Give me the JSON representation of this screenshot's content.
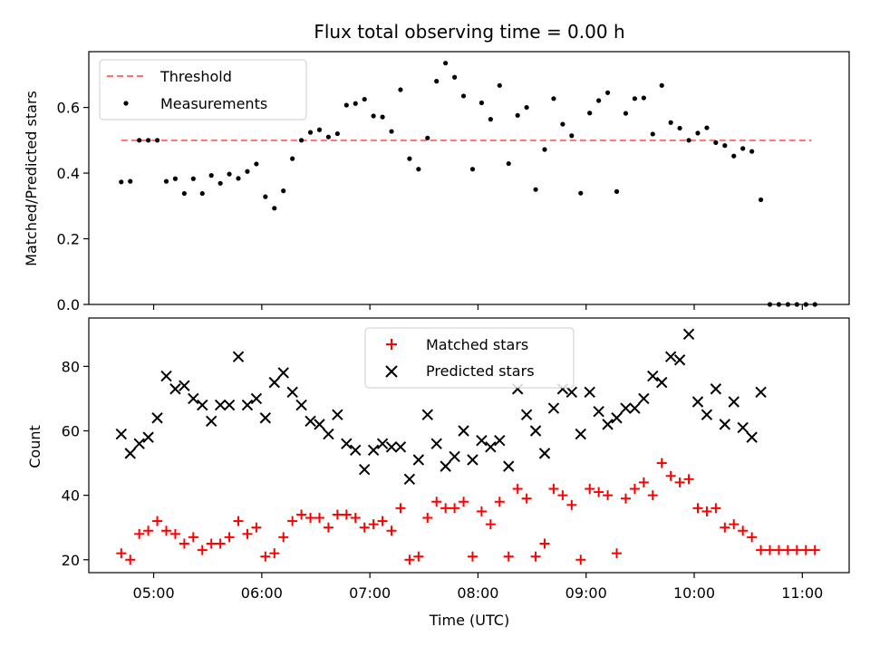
{
  "chart_data": [
    {
      "type": "scatter",
      "title": "Flux total observing time = 0.00 h",
      "xlabel": "",
      "ylabel": "Matched/Predicted stars",
      "xlim": [
        "04:24",
        "11:26"
      ],
      "ylim": [
        0,
        0.77
      ],
      "yticks": [
        0.0,
        0.2,
        0.4,
        0.6
      ],
      "ytick_labels": [
        "0.0",
        "0.2",
        "0.4",
        "0.6"
      ],
      "xticks": [
        "05:00",
        "06:00",
        "07:00",
        "08:00",
        "09:00",
        "10:00",
        "11:00"
      ],
      "legend_position": "top-left",
      "threshold": {
        "name": "Threshold",
        "value": 0.5,
        "x_range": [
          "04:42",
          "11:05"
        ],
        "color": "#ff7070"
      },
      "series": [
        {
          "name": "Measurements",
          "color": "#000000",
          "marker": "dot",
          "points": [
            [
              "04:42",
              0.373
            ],
            [
              "04:47",
              0.375
            ],
            [
              "04:52",
              0.5
            ],
            [
              "04:57",
              0.5
            ],
            [
              "05:02",
              0.5
            ],
            [
              "05:07",
              0.375
            ],
            [
              "05:12",
              0.383
            ],
            [
              "05:17",
              0.338
            ],
            [
              "05:22",
              0.383
            ],
            [
              "05:27",
              0.338
            ],
            [
              "05:32",
              0.393
            ],
            [
              "05:37",
              0.369
            ],
            [
              "05:42",
              0.397
            ],
            [
              "05:47",
              0.384
            ],
            [
              "05:52",
              0.405
            ],
            [
              "05:57",
              0.428
            ],
            [
              "06:02",
              0.328
            ],
            [
              "06:07",
              0.293
            ],
            [
              "06:12",
              0.346
            ],
            [
              "06:17",
              0.444
            ],
            [
              "06:22",
              0.5
            ],
            [
              "06:27",
              0.524
            ],
            [
              "06:32",
              0.532
            ],
            [
              "06:37",
              0.51
            ],
            [
              "06:42",
              0.52
            ],
            [
              "06:47",
              0.607
            ],
            [
              "06:52",
              0.612
            ],
            [
              "06:57",
              0.625
            ],
            [
              "07:02",
              0.574
            ],
            [
              "07:07",
              0.571
            ],
            [
              "07:12",
              0.527
            ],
            [
              "07:17",
              0.654
            ],
            [
              "07:22",
              0.444
            ],
            [
              "07:27",
              0.412
            ],
            [
              "07:32",
              0.507
            ],
            [
              "07:37",
              0.68
            ],
            [
              "07:42",
              0.735
            ],
            [
              "07:47",
              0.692
            ],
            [
              "07:52",
              0.635
            ],
            [
              "07:57",
              0.412
            ],
            [
              "08:02",
              0.614
            ],
            [
              "08:07",
              0.564
            ],
            [
              "08:12",
              0.667
            ],
            [
              "08:17",
              0.429
            ],
            [
              "08:22",
              0.576
            ],
            [
              "08:27",
              0.6
            ],
            [
              "08:32",
              0.35
            ],
            [
              "08:37",
              0.472
            ],
            [
              "08:42",
              0.627
            ],
            [
              "08:47",
              0.549
            ],
            [
              "08:52",
              0.514
            ],
            [
              "08:57",
              0.339
            ],
            [
              "09:02",
              0.583
            ],
            [
              "09:07",
              0.621
            ],
            [
              "09:12",
              0.645
            ],
            [
              "09:17",
              0.344
            ],
            [
              "09:22",
              0.582
            ],
            [
              "09:27",
              0.627
            ],
            [
              "09:32",
              0.629
            ],
            [
              "09:37",
              0.519
            ],
            [
              "09:42",
              0.667
            ],
            [
              "09:47",
              0.554
            ],
            [
              "09:52",
              0.537
            ],
            [
              "09:57",
              0.5
            ],
            [
              "10:02",
              0.522
            ],
            [
              "10:07",
              0.538
            ],
            [
              "10:12",
              0.493
            ],
            [
              "10:17",
              0.484
            ],
            [
              "10:22",
              0.452
            ],
            [
              "10:27",
              0.475
            ],
            [
              "10:32",
              0.466
            ],
            [
              "10:37",
              0.319
            ],
            [
              "10:42",
              0.0
            ],
            [
              "10:47",
              0.0
            ],
            [
              "10:52",
              0.0
            ],
            [
              "10:57",
              0.0
            ],
            [
              "11:02",
              0.0
            ],
            [
              "11:07",
              0.0
            ]
          ]
        }
      ]
    },
    {
      "type": "scatter",
      "title": "",
      "xlabel": "Time (UTC)",
      "ylabel": "Count",
      "xlim": [
        "04:24",
        "11:26"
      ],
      "ylim": [
        16,
        95
      ],
      "yticks": [
        20,
        40,
        60,
        80
      ],
      "ytick_labels": [
        "20",
        "40",
        "60",
        "80"
      ],
      "xticks": [
        "05:00",
        "06:00",
        "07:00",
        "08:00",
        "09:00",
        "10:00",
        "11:00"
      ],
      "xtick_labels": [
        "05:00",
        "06:00",
        "07:00",
        "08:00",
        "09:00",
        "10:00",
        "11:00"
      ],
      "legend_position": "top-center",
      "series": [
        {
          "name": "Matched stars",
          "color": "#ff0000",
          "marker": "plus",
          "points": [
            [
              "04:42",
              22
            ],
            [
              "04:47",
              20
            ],
            [
              "04:52",
              28
            ],
            [
              "04:57",
              29
            ],
            [
              "05:02",
              32
            ],
            [
              "05:07",
              29
            ],
            [
              "05:12",
              28
            ],
            [
              "05:17",
              25
            ],
            [
              "05:22",
              27
            ],
            [
              "05:27",
              23
            ],
            [
              "05:32",
              25
            ],
            [
              "05:37",
              25
            ],
            [
              "05:42",
              27
            ],
            [
              "05:47",
              32
            ],
            [
              "05:52",
              28
            ],
            [
              "05:57",
              30
            ],
            [
              "06:02",
              21
            ],
            [
              "06:07",
              22
            ],
            [
              "06:12",
              27
            ],
            [
              "06:17",
              32
            ],
            [
              "06:22",
              34
            ],
            [
              "06:27",
              33
            ],
            [
              "06:32",
              33
            ],
            [
              "06:37",
              30
            ],
            [
              "06:42",
              34
            ],
            [
              "06:47",
              34
            ],
            [
              "06:52",
              33
            ],
            [
              "06:57",
              30
            ],
            [
              "07:02",
              31
            ],
            [
              "07:07",
              32
            ],
            [
              "07:12",
              29
            ],
            [
              "07:17",
              36
            ],
            [
              "07:22",
              20
            ],
            [
              "07:27",
              21
            ],
            [
              "07:32",
              33
            ],
            [
              "07:37",
              38
            ],
            [
              "07:42",
              36
            ],
            [
              "07:47",
              36
            ],
            [
              "07:52",
              38
            ],
            [
              "07:57",
              21
            ],
            [
              "08:02",
              35
            ],
            [
              "08:07",
              31
            ],
            [
              "08:12",
              38
            ],
            [
              "08:17",
              21
            ],
            [
              "08:22",
              42
            ],
            [
              "08:27",
              39
            ],
            [
              "08:32",
              21
            ],
            [
              "08:37",
              25
            ],
            [
              "08:42",
              42
            ],
            [
              "08:47",
              40
            ],
            [
              "08:52",
              37
            ],
            [
              "08:57",
              20
            ],
            [
              "09:02",
              42
            ],
            [
              "09:07",
              41
            ],
            [
              "09:12",
              40
            ],
            [
              "09:17",
              22
            ],
            [
              "09:22",
              39
            ],
            [
              "09:27",
              42
            ],
            [
              "09:32",
              44
            ],
            [
              "09:37",
              40
            ],
            [
              "09:42",
              50
            ],
            [
              "09:47",
              46
            ],
            [
              "09:52",
              44
            ],
            [
              "09:57",
              45
            ],
            [
              "10:02",
              36
            ],
            [
              "10:07",
              35
            ],
            [
              "10:12",
              36
            ],
            [
              "10:17",
              30
            ],
            [
              "10:22",
              31
            ],
            [
              "10:27",
              29
            ],
            [
              "10:32",
              27
            ],
            [
              "10:37",
              23
            ],
            [
              "10:42",
              23
            ],
            [
              "10:47",
              23
            ],
            [
              "10:52",
              23
            ],
            [
              "10:57",
              23
            ],
            [
              "11:02",
              23
            ],
            [
              "11:07",
              23
            ]
          ]
        },
        {
          "name": "Predicted stars",
          "color": "#000000",
          "marker": "x",
          "points": [
            [
              "04:42",
              59
            ],
            [
              "04:47",
              53
            ],
            [
              "04:52",
              56
            ],
            [
              "04:57",
              58
            ],
            [
              "05:02",
              64
            ],
            [
              "05:07",
              77
            ],
            [
              "05:12",
              73
            ],
            [
              "05:17",
              74
            ],
            [
              "05:22",
              70
            ],
            [
              "05:27",
              68
            ],
            [
              "05:32",
              63
            ],
            [
              "05:37",
              68
            ],
            [
              "05:42",
              68
            ],
            [
              "05:47",
              83
            ],
            [
              "05:52",
              68
            ],
            [
              "05:57",
              70
            ],
            [
              "06:02",
              64
            ],
            [
              "06:07",
              75
            ],
            [
              "06:12",
              78
            ],
            [
              "06:17",
              72
            ],
            [
              "06:22",
              68
            ],
            [
              "06:27",
              63
            ],
            [
              "06:32",
              62
            ],
            [
              "06:37",
              59
            ],
            [
              "06:42",
              65
            ],
            [
              "06:47",
              56
            ],
            [
              "06:52",
              54
            ],
            [
              "06:57",
              48
            ],
            [
              "07:02",
              54
            ],
            [
              "07:07",
              56
            ],
            [
              "07:12",
              55
            ],
            [
              "07:17",
              55
            ],
            [
              "07:22",
              45
            ],
            [
              "07:27",
              51
            ],
            [
              "07:32",
              65
            ],
            [
              "07:37",
              56
            ],
            [
              "07:42",
              49
            ],
            [
              "07:47",
              52
            ],
            [
              "07:52",
              60
            ],
            [
              "07:57",
              51
            ],
            [
              "08:02",
              57
            ],
            [
              "08:07",
              55
            ],
            [
              "08:12",
              57
            ],
            [
              "08:17",
              49
            ],
            [
              "08:22",
              73
            ],
            [
              "08:27",
              65
            ],
            [
              "08:32",
              60
            ],
            [
              "08:37",
              53
            ],
            [
              "08:42",
              67
            ],
            [
              "08:47",
              73
            ],
            [
              "08:52",
              72
            ],
            [
              "08:57",
              59
            ],
            [
              "09:02",
              72
            ],
            [
              "09:07",
              66
            ],
            [
              "09:12",
              62
            ],
            [
              "09:17",
              64
            ],
            [
              "09:22",
              67
            ],
            [
              "09:27",
              67
            ],
            [
              "09:32",
              70
            ],
            [
              "09:37",
              77
            ],
            [
              "09:42",
              75
            ],
            [
              "09:47",
              83
            ],
            [
              "09:52",
              82
            ],
            [
              "09:57",
              90
            ],
            [
              "10:02",
              69
            ],
            [
              "10:07",
              65
            ],
            [
              "10:12",
              73
            ],
            [
              "10:17",
              62
            ],
            [
              "10:22",
              69
            ],
            [
              "10:27",
              61
            ],
            [
              "10:32",
              58
            ],
            [
              "10:37",
              72
            ]
          ]
        }
      ]
    }
  ]
}
